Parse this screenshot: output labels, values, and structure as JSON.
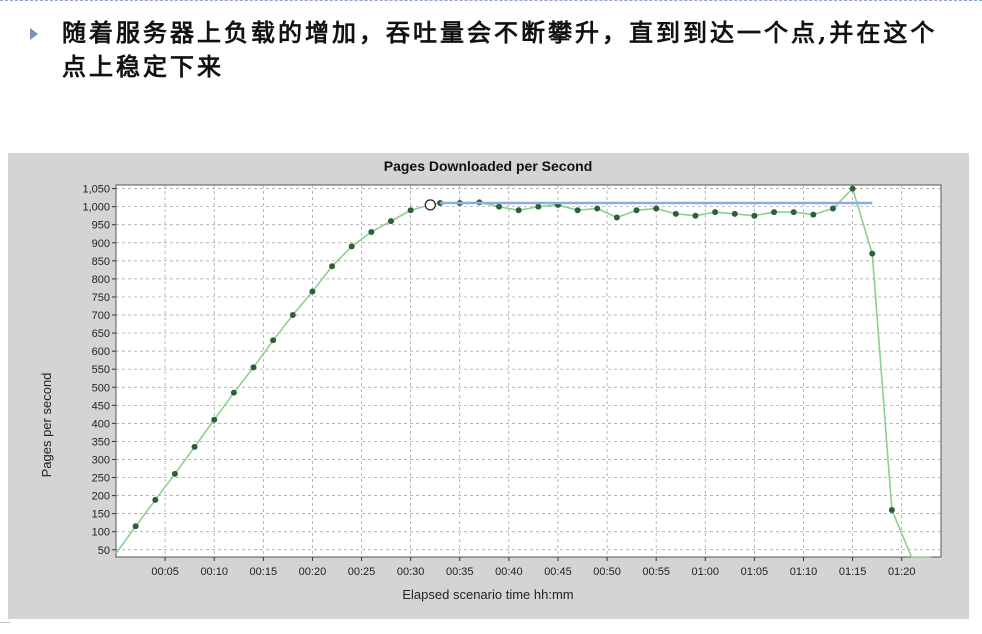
{
  "slide": {
    "heading": "随着服务器上负载的增加，吞吐量会不断攀升，直到到达一个点,并在这个点上稳定下来"
  },
  "colors": {
    "series_line": "#8ecf8e",
    "marker": "#2f5f3a",
    "plateau_line": "#8aaee0",
    "panel_bg": "#d4d4d4",
    "plot_bg": "#ffffff",
    "grid": "#9a9a9a"
  },
  "chart_data": {
    "type": "line",
    "title": "Pages Downloaded per Second",
    "xlabel": "Elapsed scenario time hh:mm",
    "ylabel": "Pages per second",
    "xlim": [
      "00:00",
      "01:24"
    ],
    "ylim": [
      30,
      1060
    ],
    "x_ticks": [
      "00:05",
      "00:10",
      "00:15",
      "00:20",
      "00:25",
      "00:30",
      "00:35",
      "00:40",
      "00:45",
      "00:50",
      "00:55",
      "01:00",
      "01:05",
      "01:10",
      "01:15",
      "01:20"
    ],
    "y_ticks": [
      50,
      100,
      150,
      200,
      250,
      300,
      350,
      400,
      450,
      500,
      550,
      600,
      650,
      700,
      750,
      800,
      850,
      900,
      950,
      1000,
      1050
    ],
    "y_tick_labels": [
      "50",
      "100",
      "150",
      "200",
      "250",
      "300",
      "350",
      "400",
      "450",
      "500",
      "550",
      "600",
      "650",
      "700",
      "750",
      "800",
      "850",
      "900",
      "950",
      "1,000",
      "1,050"
    ],
    "grid": true,
    "legend": "none",
    "series": [
      {
        "x": [
          "00:00",
          "00:02",
          "00:04",
          "00:06",
          "00:08",
          "00:10",
          "00:12",
          "00:14",
          "00:16",
          "00:18",
          "00:20",
          "00:22",
          "00:24",
          "00:26",
          "00:28",
          "00:30",
          "00:32",
          "00:33",
          "00:35",
          "00:37",
          "00:39",
          "00:41",
          "00:43",
          "00:45",
          "00:47",
          "00:49",
          "00:51",
          "00:53",
          "00:55",
          "00:57",
          "00:59",
          "01:01",
          "01:03",
          "01:05",
          "01:07",
          "01:09",
          "01:11",
          "01:13",
          "01:15",
          "01:17",
          "01:19",
          "01:21",
          "01:23"
        ],
        "values": [
          40,
          115,
          188,
          260,
          335,
          410,
          485,
          555,
          630,
          700,
          765,
          835,
          890,
          930,
          960,
          990,
          1005,
          1010,
          1010,
          1012,
          1000,
          990,
          1000,
          1005,
          990,
          995,
          970,
          990,
          995,
          980,
          975,
          985,
          980,
          975,
          985,
          985,
          978,
          995,
          1050,
          870,
          160,
          0,
          0
        ]
      }
    ],
    "annotations": [
      {
        "type": "hline",
        "y": 1010,
        "x_from": "00:33",
        "x_to": "01:17"
      },
      {
        "type": "circle",
        "x": "00:32",
        "y": 1005
      }
    ]
  }
}
